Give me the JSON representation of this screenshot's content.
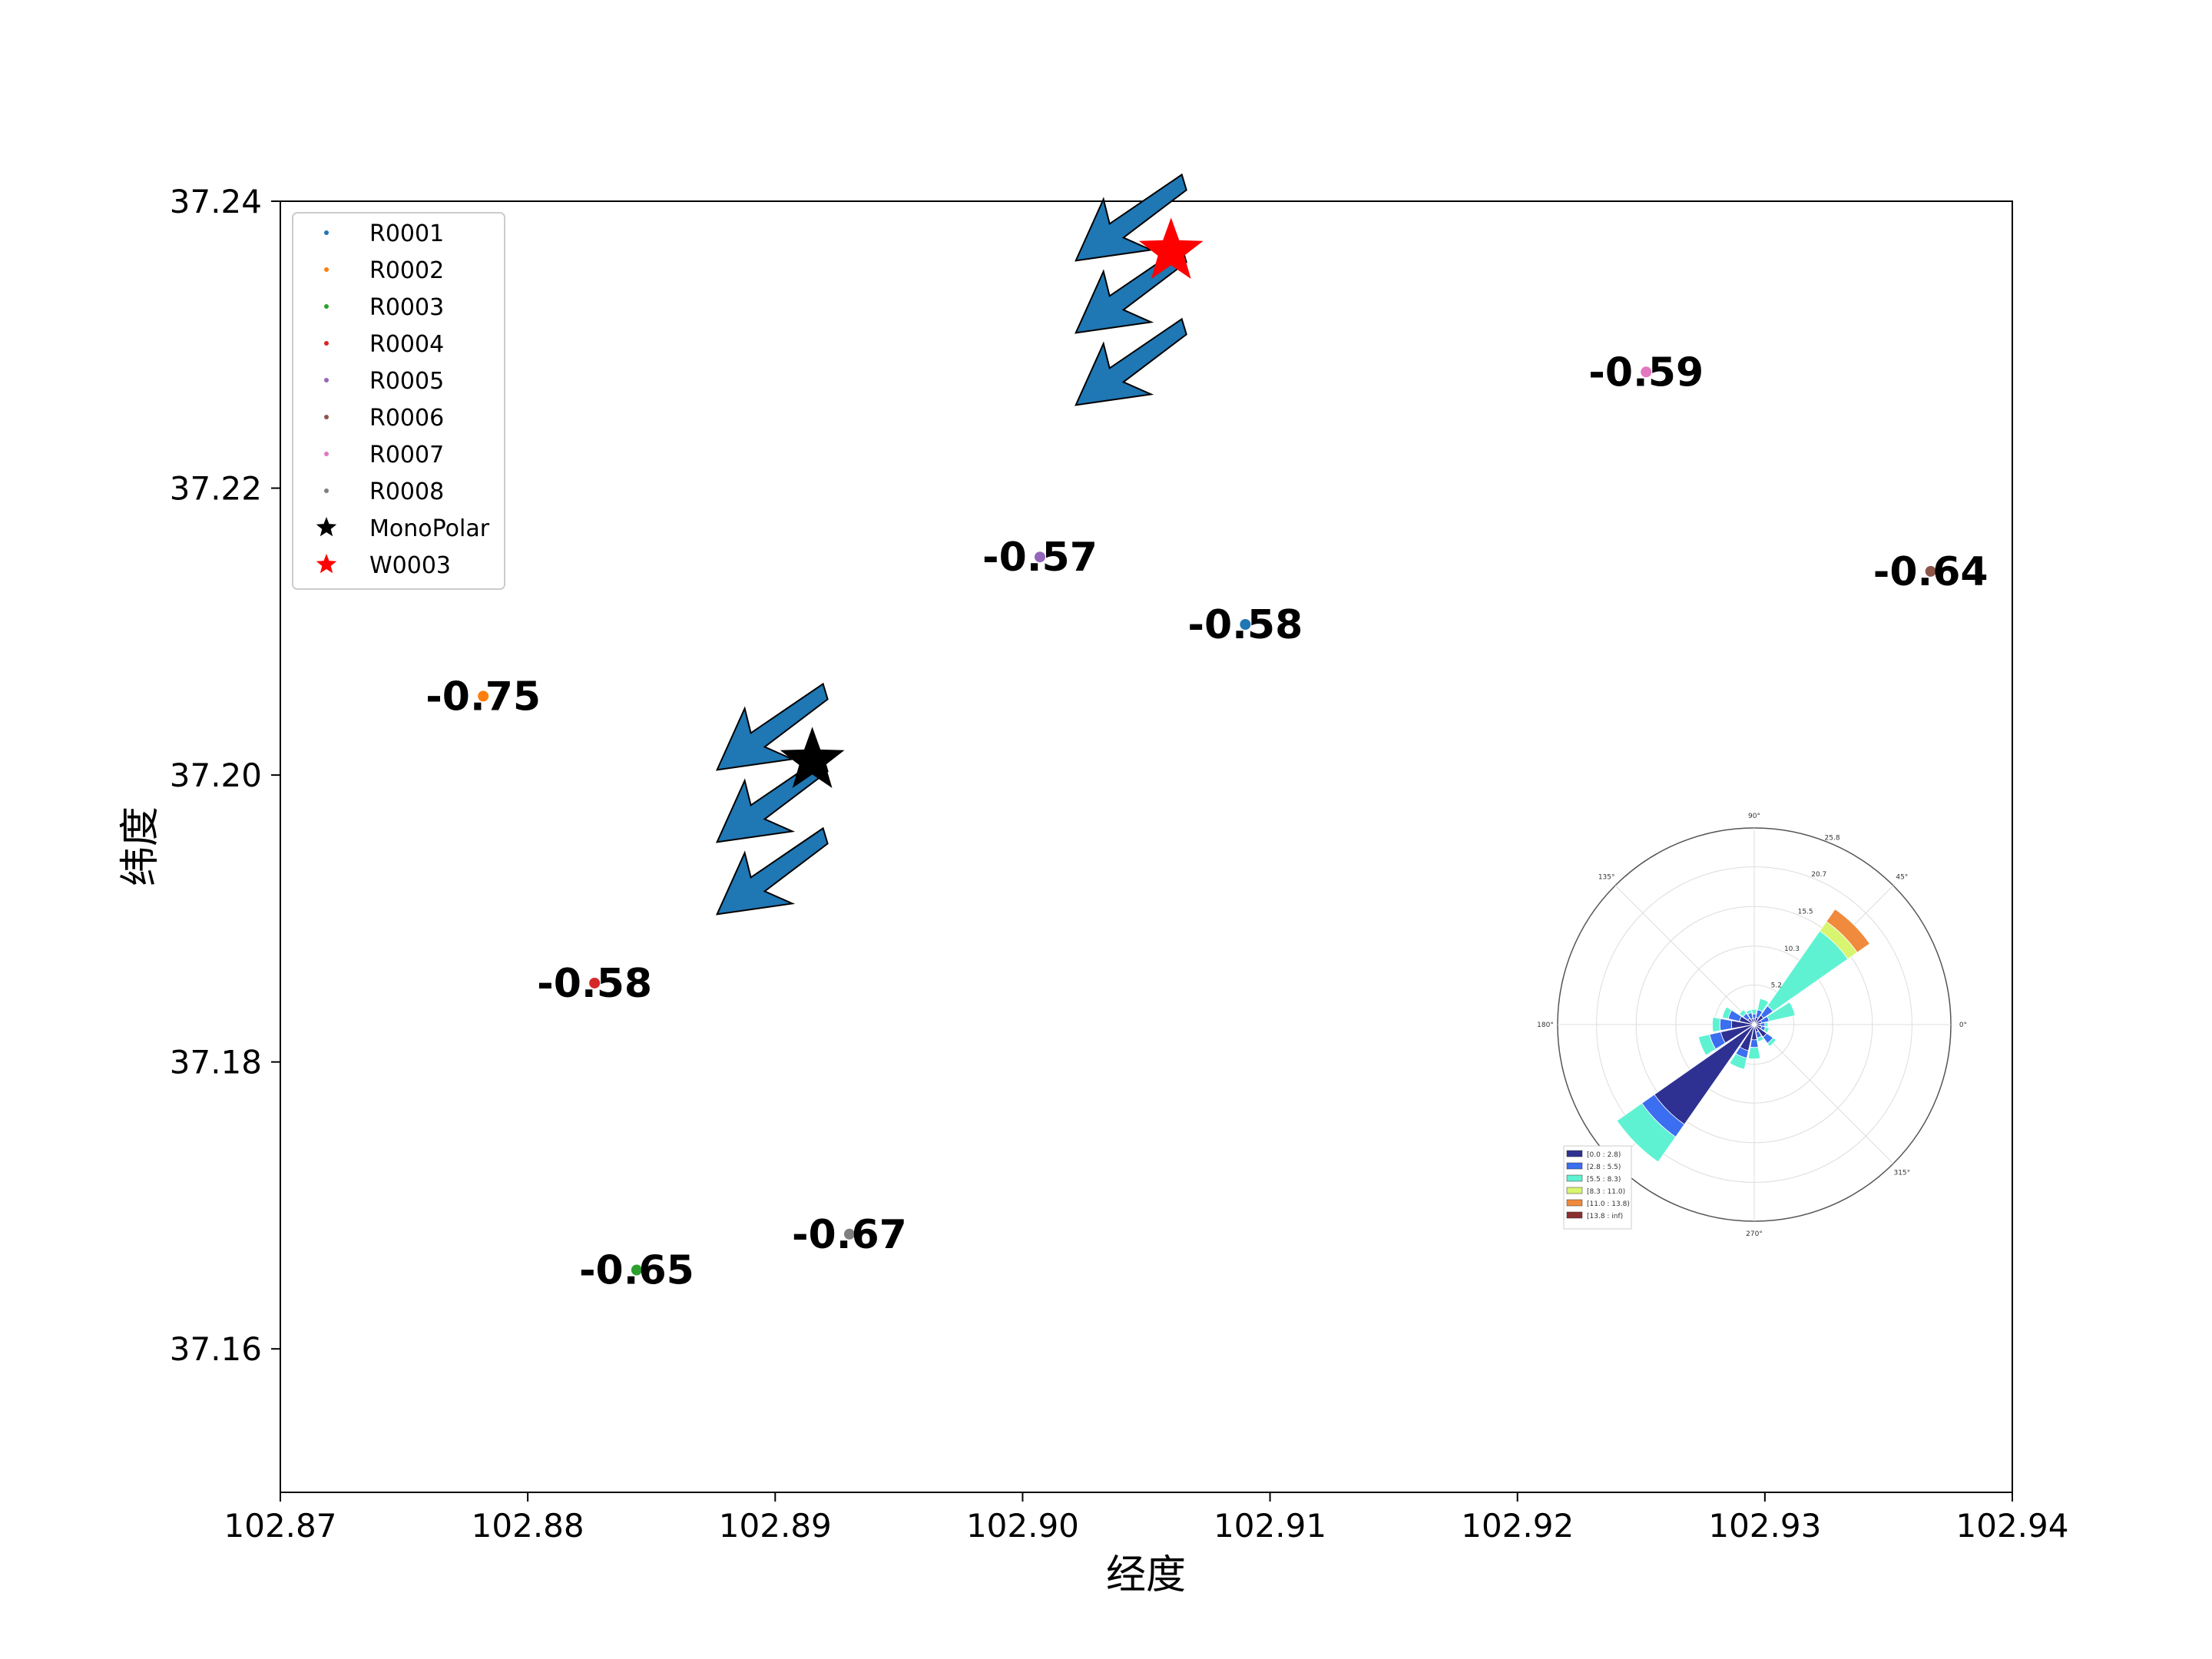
{
  "chart_data": {
    "type": "scatter",
    "xlabel": "经度",
    "ylabel": "纬度",
    "xlim": [
      102.87,
      102.94
    ],
    "ylim": [
      37.15,
      37.24
    ],
    "xticks": [
      "102.87",
      "102.88",
      "102.89",
      "102.90",
      "102.91",
      "102.92",
      "102.93",
      "102.94"
    ],
    "yticks": [
      "37.16",
      "37.18",
      "37.20",
      "37.22",
      "37.24"
    ],
    "legend_position": "upper-left",
    "stations": [
      {
        "name": "R0001",
        "lon": 102.909,
        "lat": 37.2105,
        "value": "-0.58",
        "color": "#1f77b4"
      },
      {
        "name": "R0002",
        "lon": 102.8782,
        "lat": 37.2055,
        "value": "-0.75",
        "color": "#ff7f0e"
      },
      {
        "name": "R0003",
        "lon": 102.8844,
        "lat": 37.1655,
        "value": "-0.65",
        "color": "#2ca02c"
      },
      {
        "name": "R0004",
        "lon": 102.8827,
        "lat": 37.1855,
        "value": "-0.58",
        "color": "#d62728"
      },
      {
        "name": "R0005",
        "lon": 102.9007,
        "lat": 37.2152,
        "value": "-0.57",
        "color": "#9467bd"
      },
      {
        "name": "R0006",
        "lon": 102.9367,
        "lat": 37.2142,
        "value": "-0.64",
        "color": "#8c564b"
      },
      {
        "name": "R0007",
        "lon": 102.9252,
        "lat": 37.2281,
        "value": "-0.59",
        "color": "#e377c2"
      },
      {
        "name": "R0008",
        "lon": 102.893,
        "lat": 37.168,
        "value": "-0.67",
        "color": "#7f7f7f"
      }
    ],
    "markers": [
      {
        "name": "MonoPolar",
        "lon": 102.8915,
        "lat": 37.201,
        "color": "#000000"
      },
      {
        "name": "W0003",
        "lon": 102.906,
        "lat": 37.2365,
        "color": "#ff0000"
      }
    ],
    "arrows": [
      {
        "group": "MonoPolar",
        "color": "#1f77b4",
        "edge": "#000000",
        "direction_deg": 225
      },
      {
        "group": "W0003",
        "color": "#1f77b4",
        "edge": "#000000",
        "direction_deg": 225
      }
    ],
    "wind_rose": {
      "angle_labels": [
        "90°",
        "45°",
        "0°",
        "315°",
        "270°",
        "135°",
        "180°"
      ],
      "radial_labels": [
        "5.2",
        "10.3",
        "15.5",
        "20.7",
        "25.8"
      ],
      "radial_max": 25.8,
      "bins": [
        {
          "label": "[0.0 : 2.8)",
          "color": "#2e3192"
        },
        {
          "label": "[2.8 : 5.5)",
          "color": "#3b6ef0"
        },
        {
          "label": "[5.5 : 8.3)",
          "color": "#5ef2d3"
        },
        {
          "label": "[8.3 : 11.0)",
          "color": "#d8f570"
        },
        {
          "label": "[11.0 : 13.8)",
          "color": "#f08a3c"
        },
        {
          "label": "[13.8 : inf)",
          "color": "#8b2f2f"
        }
      ],
      "directions": [
        {
          "angle": 45,
          "stack": [
            1.5,
            1.5,
            12.0,
            1.5,
            2.0,
            0.0
          ]
        },
        {
          "angle": 22.5,
          "stack": [
            1.0,
            1.0,
            3.5,
            0.0,
            0.0,
            0.0
          ]
        },
        {
          "angle": 67.5,
          "stack": [
            1.0,
            1.0,
            1.5,
            0.0,
            0.0,
            0.0
          ]
        },
        {
          "angle": 90,
          "stack": [
            0.8,
            0.6,
            0.6,
            0.0,
            0.0,
            0.0
          ]
        },
        {
          "angle": 112.5,
          "stack": [
            0.8,
            0.8,
            0.4,
            0.0,
            0.0,
            0.0
          ]
        },
        {
          "angle": 135,
          "stack": [
            1.0,
            0.8,
            0.6,
            0.0,
            0.0,
            0.0
          ]
        },
        {
          "angle": 157.5,
          "stack": [
            2.0,
            1.5,
            0.8,
            0.0,
            0.0,
            0.0
          ]
        },
        {
          "angle": 180,
          "stack": [
            3.0,
            1.5,
            1.0,
            0.0,
            0.0,
            0.0
          ]
        },
        {
          "angle": 202.5,
          "stack": [
            4.5,
            1.5,
            1.5,
            0.0,
            0.0,
            0.0
          ]
        },
        {
          "angle": 225,
          "stack": [
            16.0,
            2.0,
            4.0,
            0.0,
            0.0,
            0.0
          ]
        },
        {
          "angle": 247.5,
          "stack": [
            3.5,
            1.0,
            1.5,
            0.0,
            0.0,
            0.0
          ]
        },
        {
          "angle": 270,
          "stack": [
            2.0,
            1.0,
            1.5,
            0.0,
            0.0,
            0.0
          ]
        },
        {
          "angle": 292.5,
          "stack": [
            1.0,
            0.8,
            0.5,
            0.0,
            0.0,
            0.0
          ]
        },
        {
          "angle": 315,
          "stack": [
            2.0,
            1.0,
            0.5,
            0.0,
            0.0,
            0.0
          ]
        },
        {
          "angle": 337.5,
          "stack": [
            1.0,
            0.5,
            0.5,
            0.0,
            0.0,
            0.0
          ]
        },
        {
          "angle": 0,
          "stack": [
            0.8,
            0.6,
            0.4,
            0.0,
            0.0,
            0.0
          ]
        }
      ]
    }
  }
}
